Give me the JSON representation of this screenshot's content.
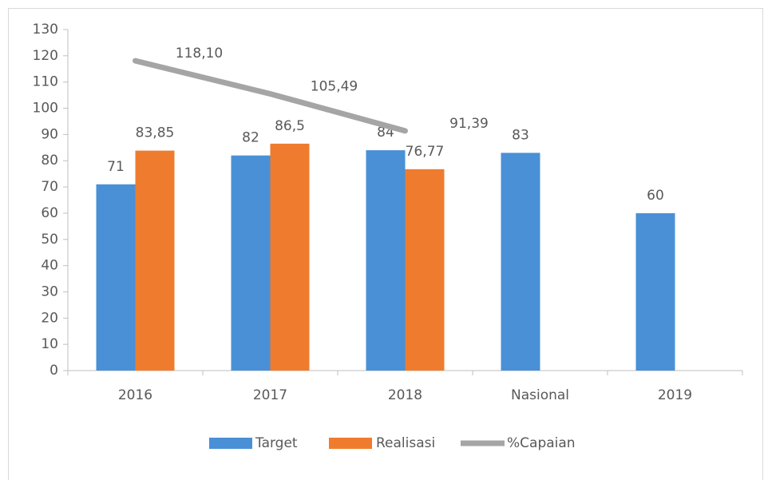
{
  "chart_data": {
    "type": "bar",
    "categories": [
      "2016",
      "2017",
      "2018",
      "Nasional",
      "2019"
    ],
    "series": [
      {
        "name": "Target",
        "type": "bar",
        "color": "#4a90d6",
        "values": [
          71,
          82,
          84,
          83,
          60
        ]
      },
      {
        "name": "Realisasi",
        "type": "bar",
        "color": "#ef7c2e",
        "values": [
          83.85,
          86.5,
          76.77,
          null,
          null
        ],
        "value_labels": [
          "83,85",
          "86,5",
          "76,77",
          null,
          null
        ]
      },
      {
        "name": "%Capaian",
        "type": "line",
        "color": "#a5a5a5",
        "values": [
          118.1,
          105.49,
          91.39,
          null,
          null
        ],
        "value_labels": [
          "118,10",
          "105,49",
          "91,39",
          null,
          null
        ]
      }
    ],
    "ylim": [
      0,
      130
    ],
    "yticks": [
      0,
      10,
      20,
      30,
      40,
      50,
      60,
      70,
      80,
      90,
      100,
      110,
      120,
      130
    ],
    "grid": false,
    "legend": "bottom"
  }
}
